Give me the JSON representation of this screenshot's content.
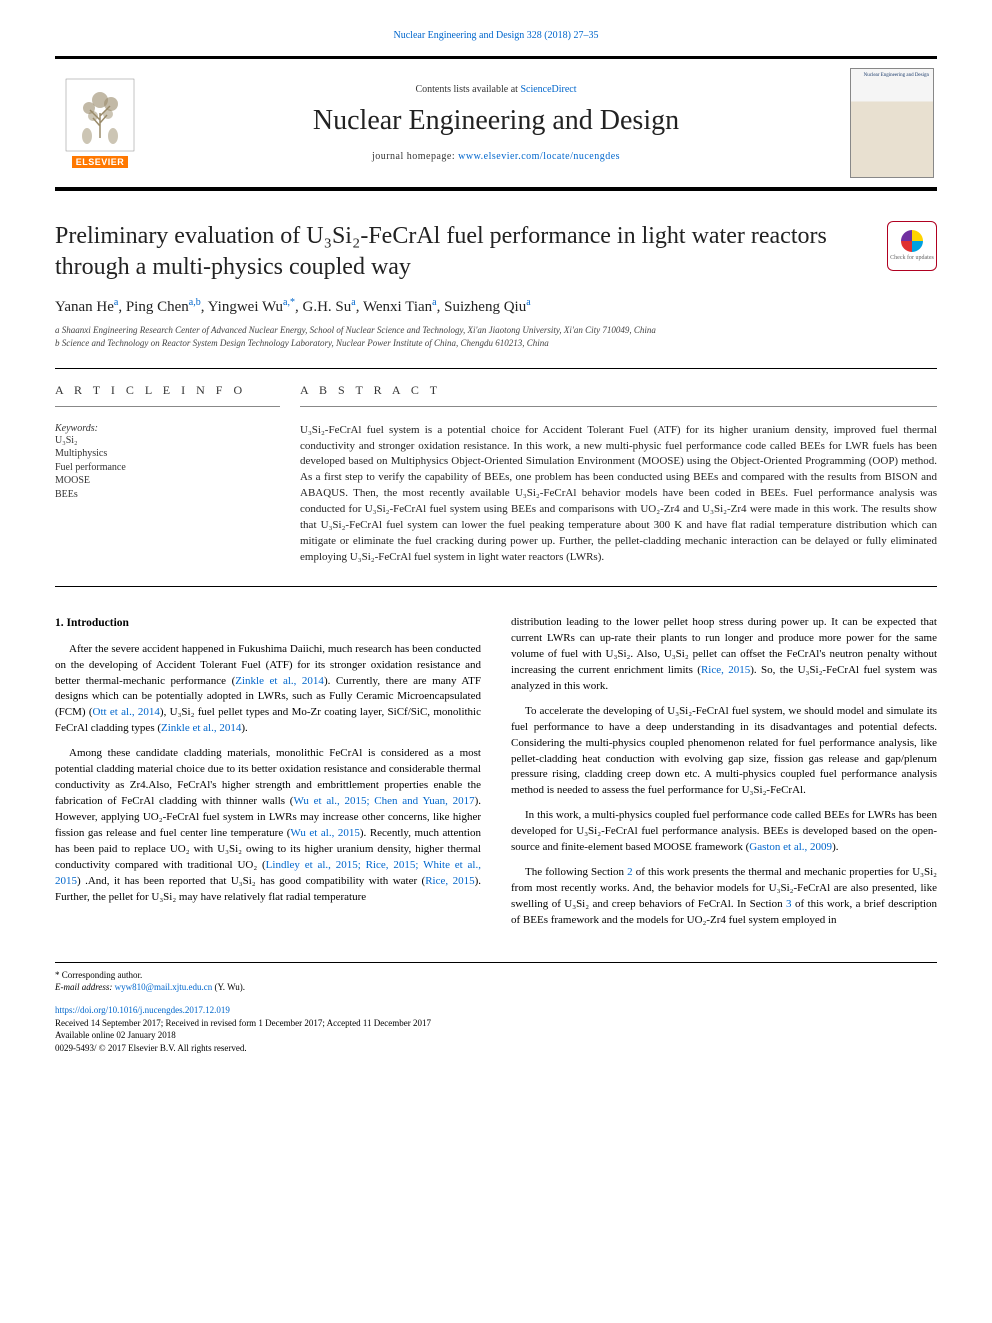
{
  "top_citation": "Nuclear Engineering and Design 328 (2018) 27–35",
  "header": {
    "contents_prefix": "Contents lists available at ",
    "contents_link": "ScienceDirect",
    "journal_title": "Nuclear Engineering and Design",
    "homepage_prefix": "journal homepage: ",
    "homepage_link": "www.elsevier.com/locate/nucengdes",
    "elsevier_label": "ELSEVIER",
    "cover_text": "Nuclear Engineering\nand Design"
  },
  "article_title": "Preliminary evaluation of U₃Si₂-FeCrAl fuel performance in light water reactors through a multi-physics coupled way",
  "check_updates_label": "Check for updates",
  "authors_html": "Yanan He<sup>a</sup>, Ping Chen<sup>a,b</sup>, Yingwei Wu<sup>a,*</sup>, G.H. Su<sup>a</sup>, Wenxi Tian<sup>a</sup>, Suizheng Qiu<sup>a</sup>",
  "affiliations": [
    "a Shaanxi Engineering Research Center of Advanced Nuclear Energy, School of Nuclear Science and Technology, Xi'an Jiaotong University, Xi'an City 710049, China",
    "b Science and Technology on Reactor System Design Technology Laboratory, Nuclear Power Institute of China, Chengdu 610213, China"
  ],
  "article_info": {
    "head": "A R T I C L E  I N F O",
    "kw_label": "Keywords:",
    "keywords": [
      "U₃Si₂",
      "Multiphysics",
      "Fuel performance",
      "MOOSE",
      "BEEs"
    ]
  },
  "abstract": {
    "head": "A B S T R A C T",
    "text": "U₃Si₂-FeCrAl fuel system is a potential choice for Accident Tolerant Fuel (ATF) for its higher uranium density, improved fuel thermal conductivity and stronger oxidation resistance. In this work, a new multi-physic fuel performance code called BEEs for LWR fuels has been developed based on Multiphysics Object-Oriented Simulation Environment (MOOSE) using the Object-Oriented Programming (OOP) method. As a first step to verify the capability of BEEs, one problem has been conducted using BEEs and compared with the results from BISON and ABAQUS. Then, the most recently available U₃Si₂-FeCrAl behavior models have been coded in BEEs. Fuel performance analysis was conducted for U₃Si₂-FeCrAl fuel system using BEEs and comparisons with UO₂-Zr4 and U₃Si₂-Zr4 were made in this work. The results show that U₃Si₂-FeCrAl fuel system can lower the fuel peaking temperature about 300 K and have flat radial temperature distribution which can mitigate or eliminate the fuel cracking during power up. Further, the pellet-cladding mechanic interaction can be delayed or fully eliminated employing U₃Si₂-FeCrAl fuel system in light water reactors (LWRs)."
  },
  "body": {
    "section_head": "1. Introduction",
    "left": [
      "After the severe accident happened in Fukushima Daiichi, much research has been conducted on the developing of Accident Tolerant Fuel (ATF) for its stronger oxidation resistance and better thermal-mechanic performance (<a class='ref' href='#'>Zinkle et al., 2014</a>). Currently, there are many ATF designs which can be potentially adopted in LWRs, such as Fully Ceramic Microencapsulated (FCM) (<a class='ref' href='#'>Ott et al., 2014</a>), U₃Si₂ fuel pellet types and Mo-Zr coating layer, SiCf/SiC, monolithic FeCrAl cladding types (<a class='ref' href='#'>Zinkle et al., 2014</a>).",
      "Among these candidate cladding materials, monolithic FeCrAl is considered as a most potential cladding material choice due to its better oxidation resistance and considerable thermal conductivity as Zr4.Also, FeCrAl's higher strength and embrittlement properties enable the fabrication of FeCrAl cladding with thinner walls (<a class='ref' href='#'>Wu et al., 2015; Chen and Yuan, 2017</a>). However, applying UO₂-FeCrAl fuel system in LWRs may increase other concerns, like higher fission gas release and fuel center line temperature (<a class='ref' href='#'>Wu et al., 2015</a>). Recently, much attention has been paid to replace UO₂ with U₃Si₂ owing to its higher uranium density, higher thermal conductivity compared with traditional UO₂ (<a class='ref' href='#'>Lindley et al., 2015; Rice, 2015; White et al., 2015</a>) .And, it has been reported that U₃Si₂ has good compatibility with water (<a class='ref' href='#'>Rice, 2015</a>). Further, the pellet for U₃Si₂ may have relatively flat radial temperature"
    ],
    "right": [
      "distribution leading to the lower pellet hoop stress during power up. It can be expected that current LWRs can up-rate their plants to run longer and produce more power for the same volume of fuel with U₃Si₂. Also, U₃Si₂ pellet can offset the FeCrAl's neutron penalty without increasing the current enrichment limits (<a class='ref' href='#'>Rice, 2015</a>). So, the U₃Si₂-FeCrAl fuel system was analyzed in this work.",
      "To accelerate the developing of U₃Si₂-FeCrAl fuel system, we should model and simulate its fuel performance to have a deep understanding in its disadvantages and potential defects. Considering the multi-physics coupled phenomenon related for fuel performance analysis, like pellet-cladding heat conduction with evolving gap size, fission gas release and gap/plenum pressure rising, cladding creep down etc. A multi-physics coupled fuel performance analysis method is needed to assess the fuel performance for U₃Si₂-FeCrAl.",
      "In this work, a multi-physics coupled fuel performance code called BEEs for LWRs has been developed for U₃Si₂-FeCrAl fuel performance analysis. BEEs is developed based on the open-source and finite-element based MOOSE framework (<a class='ref' href='#'>Gaston et al., 2009</a>).",
      "The following Section <a class='ref' href='#'>2</a> of this work presents the thermal and mechanic properties for U₃Si₂ from most recently works. And, the behavior models for U₃Si₂-FeCrAl are also presented, like swelling of U₃Si₂ and creep behaviors of FeCrAl. In Section <a class='ref' href='#'>3</a> of this work, a brief description of BEEs framework and the models for UO₂-Zr4 fuel system employed in"
    ]
  },
  "footnotes": {
    "corresp": "* Corresponding author.",
    "email_label": "E-mail address: ",
    "email": "wyw810@mail.xjtu.edu.cn",
    "email_suffix": " (Y. Wu).",
    "doi": "https://doi.org/10.1016/j.nucengdes.2017.12.019",
    "received": "Received 14 September 2017; Received in revised form 1 December 2017; Accepted 11 December 2017",
    "available": "Available online 02 January 2018",
    "copyright": "0029-5493/ © 2017 Elsevier B.V. All rights reserved."
  },
  "colors": {
    "link": "#0066cc",
    "elsevier_orange": "#ff7800",
    "text": "#222222",
    "rule": "#000000"
  }
}
